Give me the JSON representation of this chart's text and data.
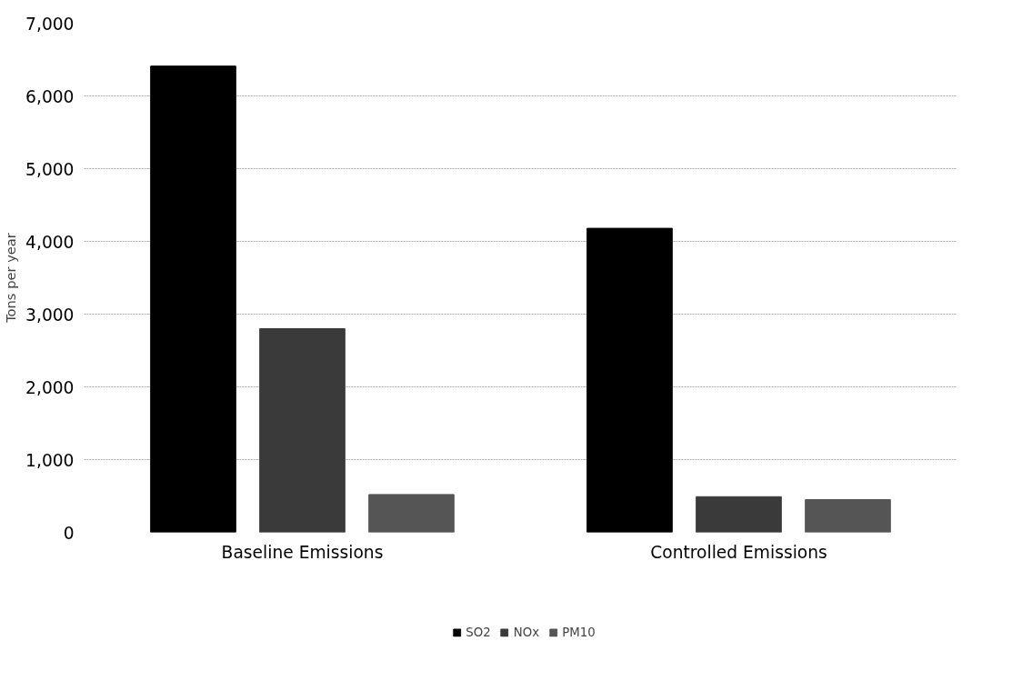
{
  "chart_data": {
    "type": "bar",
    "ylabel": "Tons per year",
    "categories": [
      "Baseline Emissions",
      "Controlled Emissions"
    ],
    "series": [
      {
        "name": "SO2",
        "color": "#000000",
        "values": [
          6410,
          4180
        ]
      },
      {
        "name": "NOx",
        "color": "#3a3a3a",
        "values": [
          2800,
          490
        ]
      },
      {
        "name": "PM10",
        "color": "#555555",
        "values": [
          520,
          450
        ]
      }
    ],
    "ylim": [
      0,
      7000
    ],
    "yticks": [
      {
        "value": 0,
        "label": "0"
      },
      {
        "value": 1000,
        "label": "1,000"
      },
      {
        "value": 2000,
        "label": "2,000"
      },
      {
        "value": 3000,
        "label": "3,000"
      },
      {
        "value": 4000,
        "label": "4,000"
      },
      {
        "value": 5000,
        "label": "5,000"
      },
      {
        "value": 6000,
        "label": "6,000"
      },
      {
        "value": 7000,
        "label": "7,000"
      }
    ],
    "grid": "y",
    "legend": "bottom"
  }
}
